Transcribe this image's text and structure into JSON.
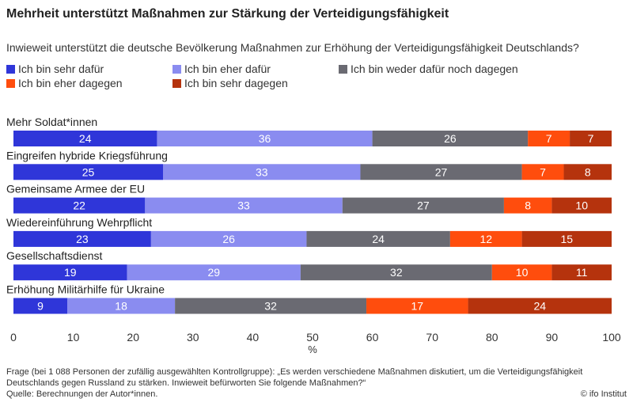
{
  "chart_data": {
    "type": "bar",
    "orientation": "horizontal",
    "stacked": true,
    "title": "Mehrheit unterstützt Maßnahmen zur Stärkung der Verteidigungsfähigkeit",
    "subtitle": "Inwieweit unterstützt die deutsche Bevölkerung Maßnahmen zur Erhöhung der Verteidigungsfähigkeit Deutschlands?",
    "xlabel": "%",
    "xlim": [
      0,
      100
    ],
    "xticks": [
      0,
      10,
      20,
      30,
      40,
      50,
      60,
      70,
      80,
      90,
      100
    ],
    "grid": false,
    "legend_position": "top",
    "categories": [
      "Mehr Soldat*innen",
      "Eingreifen hybride Kriegsführung",
      "Gemeinsame Armee der EU",
      "Wiedereinführung Wehrpflicht",
      "Gesellschaftsdienst",
      "Erhöhung Militärhilfe für Ukraine"
    ],
    "series": [
      {
        "name": "Ich bin sehr dafür",
        "color": "#2f36d9",
        "values": [
          24,
          25,
          22,
          23,
          19,
          9
        ]
      },
      {
        "name": "Ich bin eher dafür",
        "color": "#8a8cf0",
        "values": [
          36,
          33,
          33,
          26,
          29,
          18
        ]
      },
      {
        "name": "Ich bin weder dafür noch dagegen",
        "color": "#6a6a72",
        "values": [
          26,
          27,
          27,
          24,
          32,
          32
        ]
      },
      {
        "name": "Ich bin eher dagegen",
        "color": "#ff4d0d",
        "values": [
          7,
          7,
          8,
          12,
          10,
          17
        ]
      },
      {
        "name": "Ich bin sehr dagegen",
        "color": "#b5330d",
        "values": [
          7,
          8,
          10,
          15,
          11,
          24
        ]
      }
    ]
  },
  "footer": {
    "note_line1": "Frage (bei 1 088 Personen der zufällig ausgewählten Kontrollgruppe): „Es werden verschiedene Maßnahmen diskutiert, um die Verteidigungsfähigkeit",
    "note_line2": "Deutschlands gegen Russland zu stärken. Inwieweit befürworten Sie folgende Maßnahmen?“",
    "source": "Quelle: Berechnungen der Autor*innen.",
    "credit": "© ifo Institut"
  }
}
